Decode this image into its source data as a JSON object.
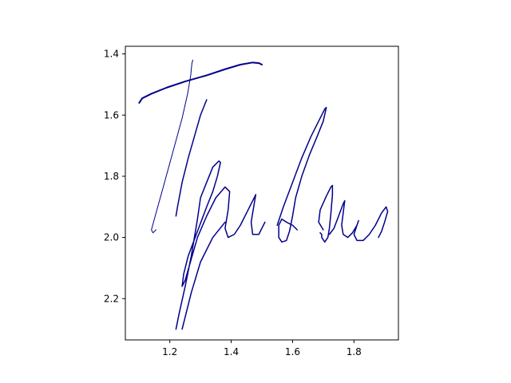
{
  "chart_data": {
    "type": "line",
    "title": "",
    "xlabel": "",
    "ylabel": "",
    "xlim": [
      1.055,
      1.945
    ],
    "ylim": [
      2.335,
      1.375
    ],
    "y_inverted": true,
    "grid": false,
    "line_color": "#00008b",
    "x_ticks": [
      {
        "value": 1.2,
        "label": "1.2"
      },
      {
        "value": 1.4,
        "label": "1.4"
      },
      {
        "value": 1.6,
        "label": "1.6"
      },
      {
        "value": 1.8,
        "label": "1.8"
      }
    ],
    "y_ticks": [
      {
        "value": 1.4,
        "label": "1.4"
      },
      {
        "value": 1.6,
        "label": "1.6"
      },
      {
        "value": 1.8,
        "label": "1.8"
      },
      {
        "value": 2.0,
        "label": "2.0"
      },
      {
        "value": 2.2,
        "label": "2.2"
      }
    ],
    "series": [
      {
        "stroke_width": 2.0,
        "points": [
          [
            1.1,
            1.56
          ],
          [
            1.11,
            1.545
          ],
          [
            1.14,
            1.53
          ],
          [
            1.19,
            1.51
          ],
          [
            1.25,
            1.49
          ],
          [
            1.32,
            1.47
          ],
          [
            1.38,
            1.45
          ],
          [
            1.43,
            1.435
          ],
          [
            1.47,
            1.428
          ],
          [
            1.49,
            1.43
          ],
          [
            1.5,
            1.435
          ]
        ]
      },
      {
        "stroke_width": 1.0,
        "points": [
          [
            1.275,
            1.42
          ],
          [
            1.272,
            1.43
          ],
          [
            1.268,
            1.47
          ],
          [
            1.258,
            1.53
          ],
          [
            1.24,
            1.61
          ],
          [
            1.21,
            1.72
          ],
          [
            1.18,
            1.83
          ],
          [
            1.155,
            1.92
          ],
          [
            1.14,
            1.975
          ],
          [
            1.145,
            1.985
          ],
          [
            1.155,
            1.975
          ]
        ]
      },
      {
        "stroke_width": 1.5,
        "points": [
          [
            1.22,
            1.93
          ],
          [
            1.225,
            1.9
          ],
          [
            1.24,
            1.82
          ],
          [
            1.26,
            1.74
          ],
          [
            1.28,
            1.67
          ],
          [
            1.3,
            1.6
          ],
          [
            1.32,
            1.55
          ]
        ]
      },
      {
        "stroke_width": 1.5,
        "points": [
          [
            1.22,
            2.3
          ],
          [
            1.23,
            2.25
          ],
          [
            1.25,
            2.16
          ],
          [
            1.27,
            2.06
          ],
          [
            1.28,
            2.0
          ],
          [
            1.29,
            1.94
          ],
          [
            1.3,
            1.87
          ],
          [
            1.32,
            1.82
          ],
          [
            1.34,
            1.77
          ],
          [
            1.36,
            1.75
          ],
          [
            1.365,
            1.755
          ],
          [
            1.355,
            1.8
          ],
          [
            1.34,
            1.85
          ],
          [
            1.32,
            1.9
          ],
          [
            1.29,
            1.98
          ],
          [
            1.26,
            2.06
          ],
          [
            1.245,
            2.12
          ],
          [
            1.24,
            2.16
          ],
          [
            1.25,
            2.14
          ],
          [
            1.27,
            2.07
          ],
          [
            1.29,
            2.0
          ],
          [
            1.32,
            1.93
          ],
          [
            1.35,
            1.87
          ],
          [
            1.38,
            1.835
          ],
          [
            1.395,
            1.85
          ],
          [
            1.39,
            1.91
          ],
          [
            1.38,
            1.97
          ],
          [
            1.39,
            2.0
          ],
          [
            1.41,
            1.99
          ],
          [
            1.43,
            1.96
          ],
          [
            1.45,
            1.92
          ],
          [
            1.47,
            1.88
          ],
          [
            1.48,
            1.86
          ],
          [
            1.475,
            1.89
          ],
          [
            1.465,
            1.95
          ],
          [
            1.47,
            1.99
          ],
          [
            1.49,
            1.99
          ],
          [
            1.5,
            1.97
          ],
          [
            1.51,
            1.95
          ]
        ]
      },
      {
        "stroke_width": 1.5,
        "points": [
          [
            1.24,
            2.3
          ],
          [
            1.27,
            2.18
          ],
          [
            1.3,
            2.08
          ],
          [
            1.34,
            2.0
          ],
          [
            1.38,
            1.95
          ]
        ]
      },
      {
        "stroke_width": 1.5,
        "points": [
          [
            1.55,
            1.96
          ],
          [
            1.57,
            1.9
          ],
          [
            1.6,
            1.82
          ],
          [
            1.63,
            1.74
          ],
          [
            1.66,
            1.67
          ],
          [
            1.69,
            1.61
          ],
          [
            1.705,
            1.58
          ],
          [
            1.71,
            1.575
          ],
          [
            1.7,
            1.62
          ],
          [
            1.68,
            1.67
          ],
          [
            1.655,
            1.73
          ],
          [
            1.63,
            1.8
          ],
          [
            1.61,
            1.87
          ],
          [
            1.6,
            1.93
          ],
          [
            1.59,
            1.98
          ],
          [
            1.58,
            2.01
          ],
          [
            1.565,
            2.015
          ],
          [
            1.555,
            2.0
          ],
          [
            1.555,
            1.96
          ],
          [
            1.565,
            1.94
          ],
          [
            1.58,
            1.95
          ],
          [
            1.6,
            1.96
          ],
          [
            1.615,
            1.975
          ]
        ]
      },
      {
        "stroke_width": 1.5,
        "points": [
          [
            1.7,
            1.975
          ],
          [
            1.685,
            1.95
          ],
          [
            1.69,
            1.91
          ],
          [
            1.71,
            1.865
          ],
          [
            1.725,
            1.835
          ],
          [
            1.73,
            1.83
          ],
          [
            1.73,
            1.86
          ],
          [
            1.725,
            1.92
          ],
          [
            1.72,
            1.97
          ],
          [
            1.715,
            2.0
          ],
          [
            1.705,
            2.015
          ],
          [
            1.695,
            2.0
          ],
          [
            1.695,
            1.99
          ],
          [
            1.69,
            1.985
          ]
        ]
      },
      {
        "stroke_width": 1.5,
        "points": [
          [
            1.72,
            1.99
          ],
          [
            1.735,
            1.97
          ],
          [
            1.75,
            1.93
          ],
          [
            1.765,
            1.89
          ],
          [
            1.77,
            1.88
          ],
          [
            1.765,
            1.92
          ],
          [
            1.76,
            1.96
          ],
          [
            1.765,
            1.99
          ],
          [
            1.78,
            2.0
          ],
          [
            1.795,
            1.985
          ],
          [
            1.81,
            1.96
          ],
          [
            1.815,
            1.945
          ],
          [
            1.81,
            1.96
          ],
          [
            1.8,
            1.99
          ],
          [
            1.81,
            2.01
          ],
          [
            1.83,
            2.01
          ],
          [
            1.85,
            1.99
          ],
          [
            1.87,
            1.96
          ],
          [
            1.89,
            1.92
          ],
          [
            1.905,
            1.9
          ],
          [
            1.91,
            1.915
          ],
          [
            1.9,
            1.95
          ],
          [
            1.89,
            1.98
          ],
          [
            1.88,
            2.0
          ]
        ]
      }
    ]
  }
}
